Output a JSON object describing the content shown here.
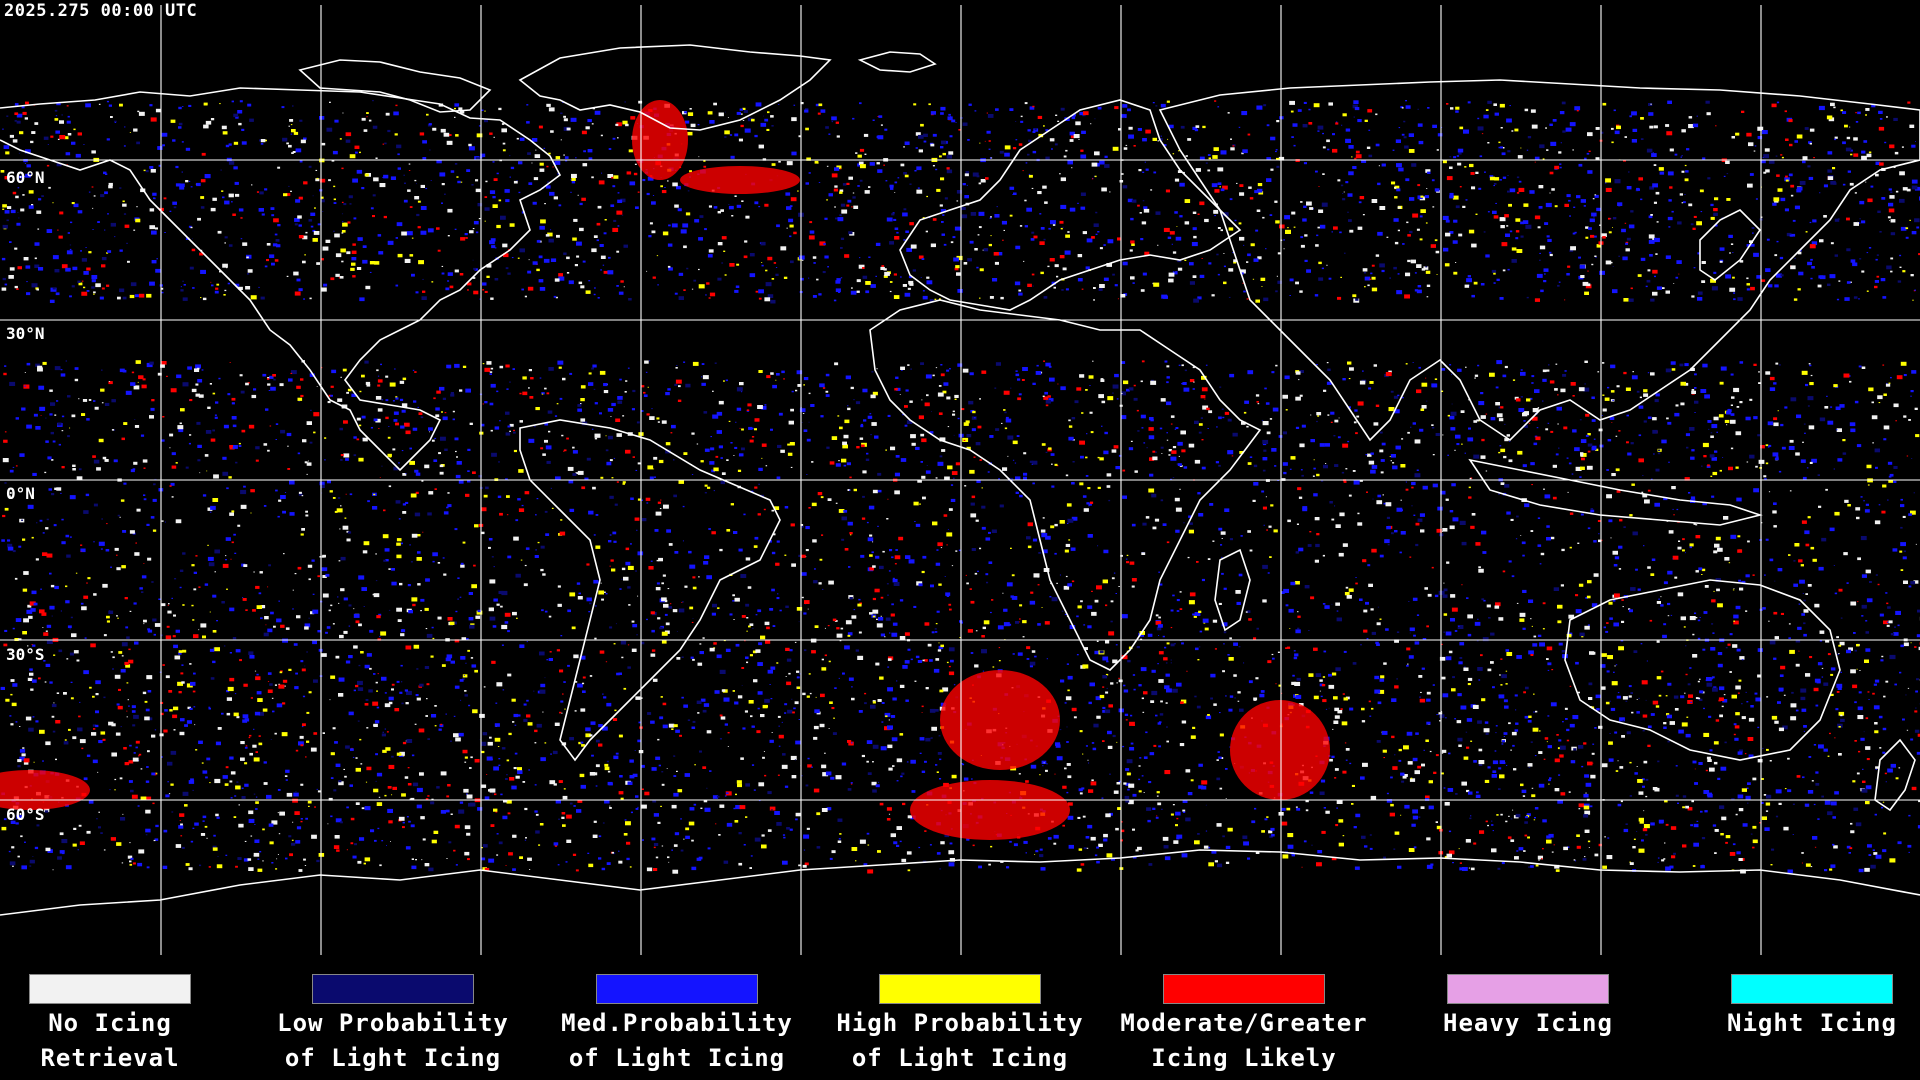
{
  "timestamp": "2025.275 00:00 UTC",
  "lat_labels": [
    "60°N",
    "30°N",
    "0°N",
    "30°S",
    "60°S"
  ],
  "legend": [
    {
      "line1": "No Icing",
      "line2": "Retrieval",
      "color": "#f2f2f2"
    },
    {
      "line1": "Low Probability",
      "line2": "of Light Icing",
      "color": "#0a0a6e"
    },
    {
      "line1": "Med.Probability",
      "line2": "of Light Icing",
      "color": "#1414ff"
    },
    {
      "line1": "High Probability",
      "line2": "of Light Icing",
      "color": "#ffff00"
    },
    {
      "line1": "Moderate/Greater",
      "line2": "Icing Likely",
      "color": "#ff0000"
    },
    {
      "line1": "Heavy Icing",
      "line2": "",
      "color": "#e6a0e6"
    },
    {
      "line1": "Night Icing",
      "line2": "",
      "color": "#00ffff"
    }
  ],
  "map": {
    "background_color": "#000000",
    "coastline_color": "#ffffff",
    "grid_color": "#ffffff",
    "projection": "equirectangular"
  }
}
